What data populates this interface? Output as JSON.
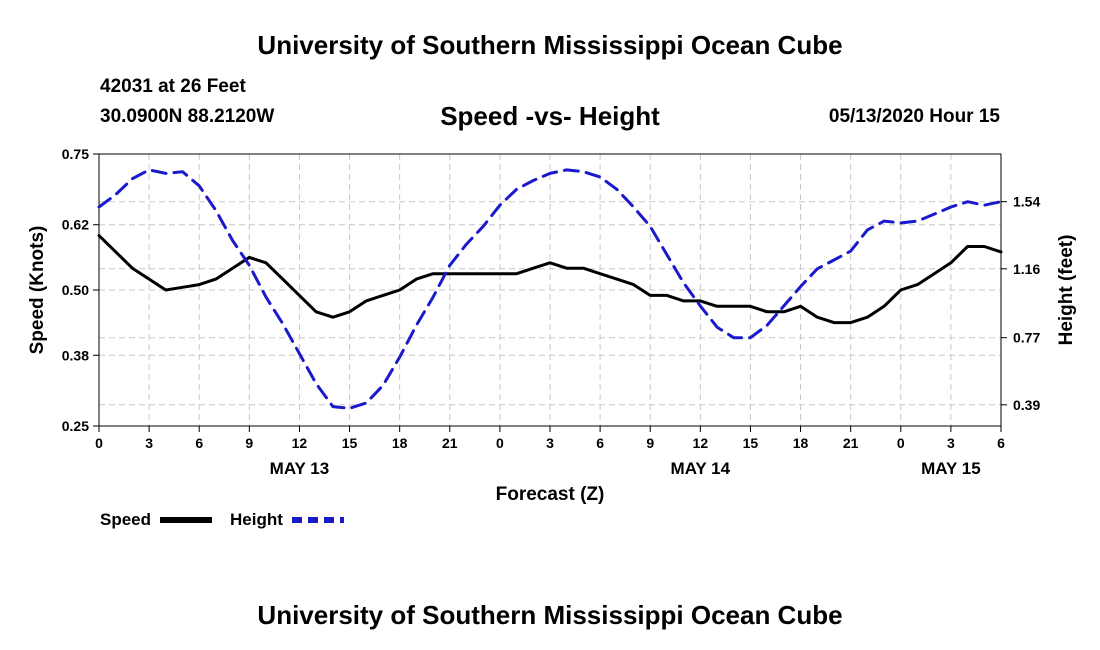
{
  "page": {
    "header_title": "University of Southern Mississippi Ocean Cube",
    "footer_title": "University of Southern Mississippi Ocean Cube",
    "station_line": "42031 at 26 Feet",
    "coords_line": "30.0900N 88.2120W",
    "timestamp": "05/13/2020 Hour 15"
  },
  "colors": {
    "speed": "#000000",
    "height": "#1a1acc",
    "grid": "#c8c8c8"
  },
  "chart_data": {
    "type": "line",
    "title": "Speed -vs- Height",
    "xlabel": "Forecast (Z)",
    "ylabel": "Speed (Knots)",
    "y2label": "Height (feet)",
    "x_range_hours": [
      0,
      54
    ],
    "x_tick_labels": [
      "0",
      "3",
      "6",
      "9",
      "12",
      "15",
      "18",
      "21",
      "0",
      "3",
      "6",
      "9",
      "12",
      "15",
      "18",
      "21",
      "0",
      "3",
      "6"
    ],
    "date_labels": [
      {
        "label": "MAY 13",
        "hour": 12
      },
      {
        "label": "MAY 14",
        "hour": 36
      },
      {
        "label": "MAY 15",
        "hour": 51
      }
    ],
    "ylim": [
      0.25,
      0.75
    ],
    "y_ticks": [
      "0.75",
      "0.62",
      "0.50",
      "0.38",
      "0.25"
    ],
    "y2lim": [
      0.27,
      1.81
    ],
    "y2_ticks": [
      "1.54",
      "1.16",
      "0.77",
      "0.39"
    ],
    "legend": [
      {
        "name": "Speed",
        "style": "solid"
      },
      {
        "name": "Height",
        "style": "dashed"
      }
    ],
    "series": [
      {
        "name": "Speed",
        "axis": "left",
        "x": [
          0,
          1,
          2,
          3,
          4,
          5,
          6,
          7,
          8,
          9,
          10,
          11,
          12,
          13,
          14,
          15,
          16,
          17,
          18,
          19,
          20,
          21,
          22,
          23,
          24,
          25,
          26,
          27,
          28,
          29,
          30,
          31,
          32,
          33,
          34,
          35,
          36,
          37,
          38,
          39,
          40,
          41,
          42,
          43,
          44,
          45,
          46,
          47,
          48,
          49,
          50,
          51,
          52,
          53,
          54
        ],
        "values": [
          0.6,
          0.57,
          0.54,
          0.52,
          0.5,
          0.505,
          0.51,
          0.52,
          0.54,
          0.56,
          0.55,
          0.52,
          0.49,
          0.46,
          0.45,
          0.46,
          0.48,
          0.49,
          0.5,
          0.52,
          0.53,
          0.53,
          0.53,
          0.53,
          0.53,
          0.53,
          0.54,
          0.55,
          0.54,
          0.54,
          0.53,
          0.52,
          0.51,
          0.49,
          0.49,
          0.48,
          0.48,
          0.47,
          0.47,
          0.47,
          0.46,
          0.46,
          0.47,
          0.45,
          0.44,
          0.44,
          0.45,
          0.47,
          0.5,
          0.51,
          0.53,
          0.55,
          0.58,
          0.58,
          0.57
        ]
      },
      {
        "name": "Height",
        "axis": "right",
        "x": [
          0,
          1,
          2,
          3,
          4,
          5,
          6,
          7,
          8,
          9,
          10,
          11,
          12,
          13,
          14,
          15,
          16,
          17,
          18,
          19,
          20,
          21,
          22,
          23,
          24,
          25,
          26,
          27,
          28,
          29,
          30,
          31,
          32,
          33,
          34,
          35,
          36,
          37,
          38,
          39,
          40,
          41,
          42,
          43,
          44,
          45,
          46,
          47,
          48,
          49,
          50,
          51,
          52,
          53,
          54
        ],
        "values": [
          1.51,
          1.58,
          1.67,
          1.72,
          1.7,
          1.71,
          1.63,
          1.49,
          1.32,
          1.18,
          1.0,
          0.85,
          0.68,
          0.51,
          0.38,
          0.37,
          0.4,
          0.5,
          0.66,
          0.84,
          1.0,
          1.18,
          1.3,
          1.4,
          1.52,
          1.61,
          1.66,
          1.7,
          1.72,
          1.71,
          1.68,
          1.61,
          1.51,
          1.4,
          1.24,
          1.08,
          0.95,
          0.83,
          0.77,
          0.77,
          0.84,
          0.95,
          1.06,
          1.16,
          1.21,
          1.26,
          1.38,
          1.43,
          1.42,
          1.43,
          1.47,
          1.51,
          1.54,
          1.52,
          1.54
        ]
      }
    ]
  }
}
